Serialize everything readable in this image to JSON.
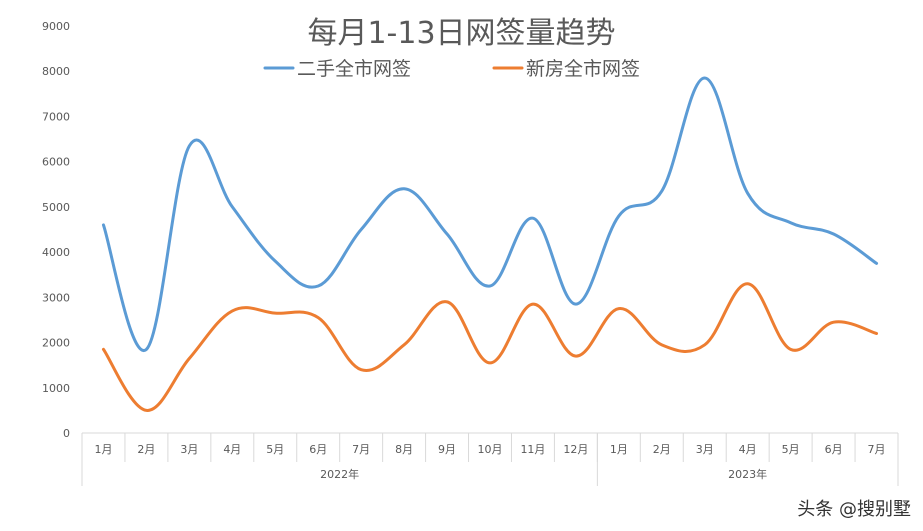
{
  "chart_data": {
    "type": "line",
    "title": "每月1-13日网签量趋势",
    "categories": [
      "1月",
      "2月",
      "3月",
      "4月",
      "5月",
      "6月",
      "7月",
      "8月",
      "9月",
      "10月",
      "11月",
      "12月",
      "1月",
      "2月",
      "3月",
      "4月",
      "5月",
      "6月",
      "7月"
    ],
    "groups": [
      {
        "label": "2022年",
        "count": 12
      },
      {
        "label": "2023年",
        "count": 7
      }
    ],
    "ylim": [
      0,
      9000
    ],
    "yticks": [
      0,
      1000,
      2000,
      3000,
      4000,
      5000,
      6000,
      7000,
      8000,
      9000
    ],
    "grid": false,
    "legend_position": "top",
    "series": [
      {
        "name": "二手全市网签",
        "color": "#5B9BD5",
        "values": [
          4600,
          1850,
          6350,
          5000,
          3800,
          3250,
          4500,
          5400,
          4400,
          3250,
          4750,
          2850,
          4800,
          5350,
          7850,
          5300,
          4650,
          4400,
          3750
        ]
      },
      {
        "name": "新房全市网签",
        "color": "#ED7D31",
        "values": [
          1850,
          500,
          1650,
          2700,
          2650,
          2550,
          1400,
          1950,
          2900,
          1550,
          2850,
          1700,
          2750,
          1950,
          1950,
          3300,
          1850,
          2450,
          2200
        ]
      }
    ]
  },
  "watermark": "头条 @搜别墅"
}
